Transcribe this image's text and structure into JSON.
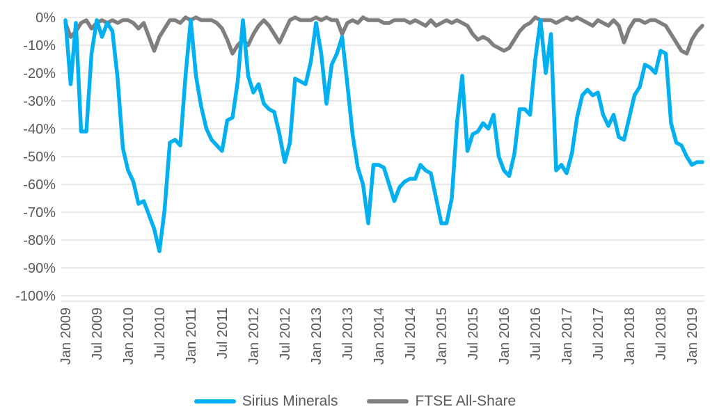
{
  "colors": {
    "background": "#FFFFFF",
    "gridline": "#D9D9D9",
    "tick_text": "#595959",
    "sirius_blue": "#00B0F0",
    "ftse_gray": "#7F7F7F"
  },
  "legend": {
    "items": [
      {
        "label": "Sirius Minerals",
        "color": "#00B0F0"
      },
      {
        "label": "FTSE All-Share",
        "color": "#7F7F7F"
      }
    ]
  },
  "chart_data": {
    "type": "line",
    "title": "",
    "xlabel": "",
    "ylabel": "",
    "x_start": "Jan 2009",
    "x_end": "Mar 2019",
    "frequency": "monthly",
    "ylim": [
      -100,
      0
    ],
    "grid": "horizontal",
    "legend_position": "bottom",
    "y_tick_labels": [
      "0%",
      "-10%",
      "-20%",
      "-30%",
      "-40%",
      "-50%",
      "-60%",
      "-70%",
      "-80%",
      "-90%",
      "-100%"
    ],
    "x_tick_labels": [
      "Jan 2009",
      "Jul 2009",
      "Jan 2010",
      "Jul 2010",
      "Jan 2011",
      "Jul 2011",
      "Jan 2012",
      "Jul 2012",
      "Jan 2013",
      "Jul 2013",
      "Jan 2014",
      "Jul 2014",
      "Jan 2015",
      "Jul 2015",
      "Jan 2016",
      "Jul 2016",
      "Jan 2017",
      "Jul 2017",
      "Jan 2018",
      "Jul 2018",
      "Jan 2019"
    ],
    "x_tick_every_months": 6,
    "series": [
      {
        "name": "Sirius Minerals",
        "color": "#00B0F0",
        "values": [
          -1,
          -24,
          -2,
          -41,
          -41,
          -13,
          -1,
          -7,
          -2,
          -5,
          -22,
          -47,
          -55,
          -59,
          -67,
          -66,
          -71,
          -76,
          -84,
          -69,
          -45,
          -44,
          -46,
          -21,
          -1,
          -21,
          -32,
          -40,
          -44,
          -46,
          -48,
          -37,
          -36,
          -23,
          -1,
          -21,
          -27,
          -24,
          -31,
          -33,
          -34,
          -42,
          -52,
          -45,
          -22,
          -23,
          -24,
          -16,
          -2,
          -13,
          -31,
          -17,
          -13,
          -7,
          -24,
          -42,
          -54,
          -60,
          -74,
          -53,
          -53,
          -54,
          -60,
          -66,
          -61,
          -59,
          -58,
          -58,
          -53,
          -55,
          -56,
          -65,
          -74,
          -74,
          -65,
          -38,
          -21,
          -48,
          -42,
          -41,
          -38,
          -40,
          -35,
          -50,
          -55,
          -57,
          -49,
          -33,
          -33,
          -35,
          -15,
          -1,
          -20,
          -6,
          -55,
          -53,
          -56,
          -49,
          -36,
          -28,
          -26,
          -28,
          -27,
          -35,
          -39,
          -35,
          -43,
          -44,
          -36,
          -28,
          -25,
          -17,
          -18,
          -20,
          -12,
          -13,
          -38,
          -45,
          -46,
          -50,
          -53,
          -52,
          -52
        ]
      },
      {
        "name": "FTSE All-Share",
        "color": "#7F7F7F",
        "values": [
          -2,
          -7,
          -5,
          -2,
          -1,
          -4,
          -2,
          -1,
          -2,
          -1,
          -2,
          -1,
          -1,
          -2,
          -4,
          -2,
          -7,
          -12,
          -7,
          -4,
          -1,
          -1,
          -2,
          0,
          -1,
          0,
          -1,
          -1,
          -1,
          -2,
          -4,
          -8,
          -13,
          -10,
          -8,
          -10,
          -6,
          -3,
          -1,
          -3,
          -6,
          -9,
          -5,
          -1,
          0,
          -1,
          -1,
          -1,
          0,
          -1,
          0,
          -1,
          -1,
          -6,
          -2,
          -1,
          -2,
          0,
          -1,
          -1,
          -1,
          -2,
          -2,
          -1,
          -1,
          -1,
          -2,
          -1,
          -2,
          -3,
          -1,
          -3,
          -2,
          -1,
          -2,
          -1,
          -2,
          -3,
          -6,
          -8,
          -7,
          -8,
          -10,
          -11,
          -12,
          -11,
          -8,
          -5,
          -3,
          -2,
          0,
          -1,
          -1,
          -1,
          -2,
          -1,
          0,
          -1,
          0,
          -1,
          -2,
          -3,
          -1,
          -2,
          -3,
          -1,
          -3,
          -9,
          -4,
          -1,
          -1,
          -2,
          -1,
          -1,
          -2,
          -3,
          -6,
          -9,
          -12,
          -13,
          -8,
          -5,
          -3
        ]
      }
    ]
  }
}
